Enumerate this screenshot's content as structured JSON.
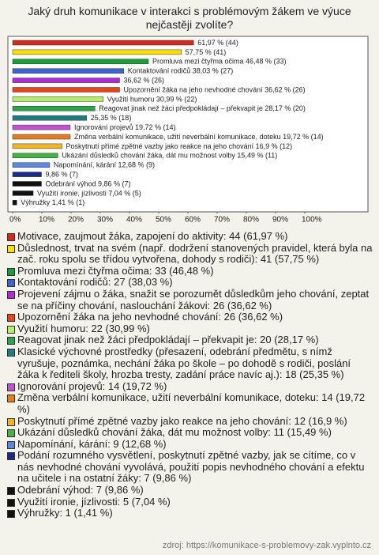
{
  "chart_data": {
    "type": "barh",
    "title": "Jaký druh komunikace v interakci s problémovým žákem ve výuce nejčastěji zvolíte?",
    "categories": [
      "Motivace, zaujmout žáka, zapojení do aktivity: 44 (61,97 %)",
      "Důslednost, trvat na svém (např. dodržení stanovených pravidel, která byla na zač. roku spolu se třídou vytvořena, dohody s rodiči): 41 (57,75 %)",
      "Promluva mezi čtyřma očima: 33 (46,48 %)",
      "Kontaktování rodičů: 27 (38,03 %)",
      "Projevení zájmu o žáka, snažit se porozumět důsledkům jeho chování, zeptat se na příčiny chování, naslouchání žákovi: 26 (36,62 %)",
      "Upozornění žáka na jeho nevhodné chování: 26 (36,62 %)",
      "Využití humoru: 22 (30,99 %)",
      "Reagovat jinak než žáci předpokládají – překvapit je: 20 (28,17 %)",
      "Klasické výchovné prostředky (přesazení, odebrání předmětu, s nímž vyrušuje, poznámka, nechání žáka po škole – po dohodě s rodiči, poslání žáka k řediteli školy, hrozba tresty, zadání práce navíc aj.): 18 (25,35 %)",
      "Ignorování projevů: 14 (19,72 %)",
      "Změna verbální komunikace, užití neverbální komunikace, doteku: 14 (19,72 %)",
      "Poskytnutí přímé zpětné vazby jako reakce na jeho chování: 12 (16,9 %)",
      "Ukázání důsledků chování žáka, dát mu možnost volby: 11 (15,49 %)",
      "Napomínání, kárání: 9 (12,68 %)",
      "Podání rozumného vysvětlení, poskytnutí zpětné vazby, jak se cítíme, co v nás nevhodné chování vyvolává, použití popis nevhodného chování a efektu na učitele i na ostatní žáky: 7 (9,86 %)",
      "Odebrání výhod: 7 (9,86 %)",
      "Využití ironie, jízlivosti: 5 (7,04 %)",
      "Výhružky: 1 (1,41 %)"
    ],
    "values": [
      61.97,
      57.75,
      46.48,
      38.03,
      36.62,
      36.62,
      30.99,
      28.17,
      25.35,
      19.72,
      19.72,
      16.9,
      15.49,
      12.68,
      9.86,
      9.86,
      7.04,
      1.41
    ],
    "value_labels": [
      "61,97 % (44)",
      "57,75 % (41)",
      "Promluva mezi čtyřma očima 46,48 % (33)",
      "Kontaktování rodičů 38,03 % (27)",
      "36,62 % (26)",
      "Upozornění žáka na jeho nevhodné chování 36,62 % (26)",
      "Využití humoru 30,99 % (22)",
      "Reagovat jinak než žáci předpokládají – překvapit je 28,17 % (20)",
      "25,35 % (18)",
      "Ignorování projevů 19,72 % (14)",
      "Změna verbální komunikace, užití neverbální komunikace, doteku 19,72 % (14)",
      "Poskytnutí přímé zpětné vazby jako reakce na jeho chování 16,9 % (12)",
      "Ukázání důsledků chování žáka, dát mu možnost volby 15,49 % (11)",
      "Napomínání, kárání 12,68 % (9)",
      "9,86 % (7)",
      "Odebrání výhod 9,86 % (7)",
      "Využití ironie, jízlivosti 7,04 % (5)",
      "Výhružky 1,41 % (1)"
    ],
    "colors": [
      "#d42a1e",
      "#ffdd00",
      "#1a9e3a",
      "#3b63d6",
      "#b22ad8",
      "#e8461a",
      "#b6ee6a",
      "#2aa448",
      "#1e7c80",
      "#c154cc",
      "#e87c1a",
      "#f0b424",
      "#42b446",
      "#5a86e4",
      "#1a2a8a",
      "#111111",
      "#111111",
      "#111111"
    ],
    "xlim": [
      0,
      100
    ],
    "xticks": [
      {
        "value": 0,
        "label": "0%"
      },
      {
        "value": 10,
        "label": "10%"
      },
      {
        "value": 20,
        "label": "20%"
      },
      {
        "value": 30,
        "label": "30%"
      },
      {
        "value": 40,
        "label": "40%"
      },
      {
        "value": 50,
        "label": "50%"
      },
      {
        "value": 60,
        "label": "60%"
      },
      {
        "value": 70,
        "label": "70%"
      },
      {
        "value": 80,
        "label": "80%"
      },
      {
        "value": 90,
        "label": "90%"
      },
      {
        "value": 100,
        "label": "100%"
      }
    ],
    "source": "zdroj: https://komunikace-s-problemovy-zak.vyplnto.cz"
  }
}
